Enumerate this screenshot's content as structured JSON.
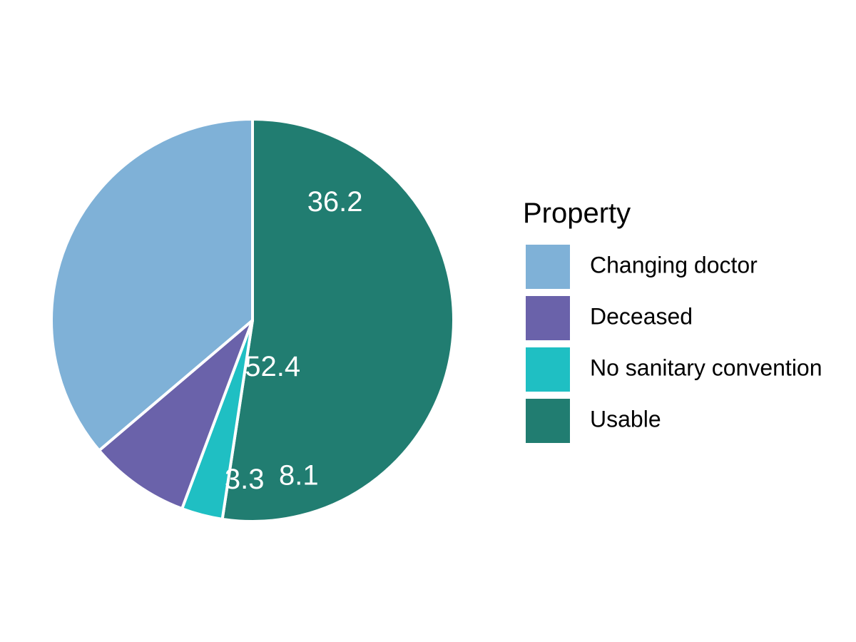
{
  "chart_data": {
    "type": "pie",
    "legend_title": "Property",
    "legend_position": "right",
    "direction": "clockwise",
    "start": "top",
    "categories": [
      "Usable",
      "No sanitary convention",
      "Deceased",
      "Changing doctor"
    ],
    "values": [
      52.4,
      3.3,
      8.1,
      36.2
    ],
    "labels": [
      "52.4",
      "3.3",
      "8.1",
      "36.2"
    ],
    "colors": [
      "#217D71",
      "#1FBFC3",
      "#6A62AA",
      "#7FB1D7"
    ],
    "legend_entries": [
      {
        "label": "Changing doctor",
        "color": "#7FB1D7"
      },
      {
        "label": "Deceased",
        "color": "#6A62AA"
      },
      {
        "label": "No sanitary convention",
        "color": "#1FBFC3"
      },
      {
        "label": "Usable",
        "color": "#217D71"
      }
    ]
  }
}
